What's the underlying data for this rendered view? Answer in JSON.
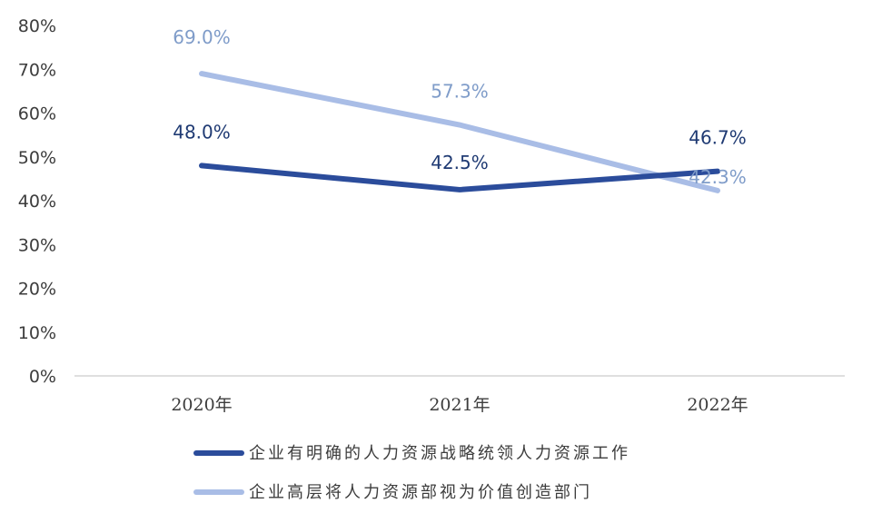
{
  "chart_data": {
    "type": "line",
    "categories": [
      "2020年",
      "2021年",
      "2022年"
    ],
    "series": [
      {
        "name": "企业有明确的人力资源战略统领人力资源工作",
        "values": [
          48.0,
          42.5,
          46.7
        ],
        "labels": [
          "48.0%",
          "42.5%",
          "46.7%"
        ],
        "color": "#2b4c9b"
      },
      {
        "name": "企业高层将人力资源部视为价值创造部门",
        "values": [
          69.0,
          57.3,
          42.3
        ],
        "labels": [
          "69.0%",
          "57.3%",
          "42.3%"
        ],
        "color": "#a9bde6"
      }
    ],
    "ylim": [
      0,
      80
    ],
    "yticks": [
      0,
      10,
      20,
      30,
      40,
      50,
      60,
      70,
      80
    ],
    "ytick_labels": [
      "0%",
      "10%",
      "20%",
      "30%",
      "40%",
      "50%",
      "60%",
      "70%",
      "80%"
    ],
    "title": "",
    "xlabel": "",
    "ylabel": "",
    "grid": false,
    "legend": "bottom-center",
    "label_colors": {
      "dark": "#1f3a73",
      "light": "#7f9cc9"
    }
  }
}
